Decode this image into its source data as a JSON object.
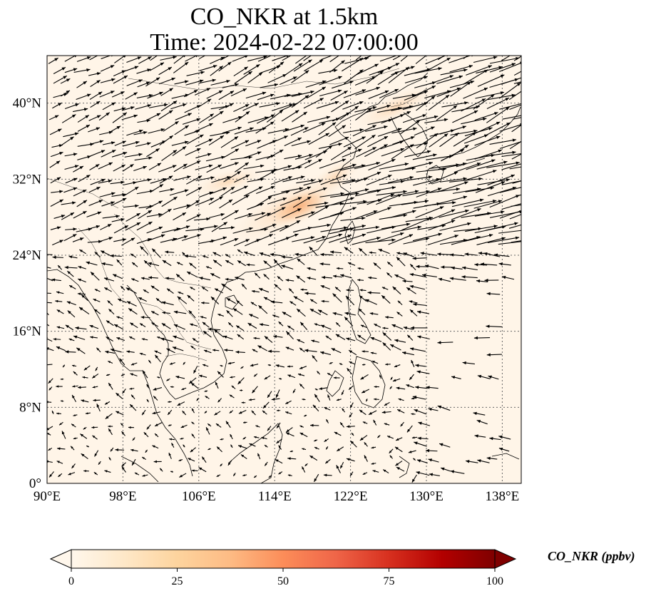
{
  "title": {
    "line1": "CO_NKR at 1.5km",
    "line2": "Time: 2024-02-22 07:00:00"
  },
  "map": {
    "projection": "PlateCarree",
    "lon_range": [
      90,
      140
    ],
    "lat_range": [
      0,
      45
    ],
    "gridlines": "dotted",
    "x_ticks": [
      "90°E",
      "98°E",
      "106°E",
      "114°E",
      "122°E",
      "130°E",
      "138°E"
    ],
    "y_ticks": [
      "0°",
      "8°N",
      "16°N",
      "24°N",
      "32°N",
      "40°N"
    ],
    "background_color": "#fff5e8",
    "coastline_color": "#000000",
    "vector_color": "#000000"
  },
  "colorbar": {
    "label": "CO_NKR (ppbv)",
    "ticks": [
      "0",
      "25",
      "50",
      "75",
      "100"
    ],
    "range": [
      0,
      100
    ],
    "colormap": "OrRd",
    "colors": [
      "#fff7ec",
      "#fee8c8",
      "#fdd49e",
      "#fdbb84",
      "#fc8d59",
      "#ef6548",
      "#d7301f",
      "#b30000",
      "#7f0000"
    ]
  },
  "chart_data": {
    "type": "heatmap",
    "title": "CO_NKR at 1.5km\nTime: 2024-02-22 07:00:00",
    "variable": "CO_NKR (ppbv)",
    "xlim": [
      90,
      140
    ],
    "ylim": [
      0,
      45
    ],
    "plume_regions": [
      {
        "lon": 117,
        "lat": 29.5,
        "value": 25
      },
      {
        "lon": 114,
        "lat": 29,
        "value": 18
      },
      {
        "lon": 120,
        "lat": 32,
        "value": 14
      },
      {
        "lon": 123,
        "lat": 39.5,
        "value": 12
      },
      {
        "lon": 110,
        "lat": 30.5,
        "value": 10
      }
    ],
    "background_value": 3
  }
}
